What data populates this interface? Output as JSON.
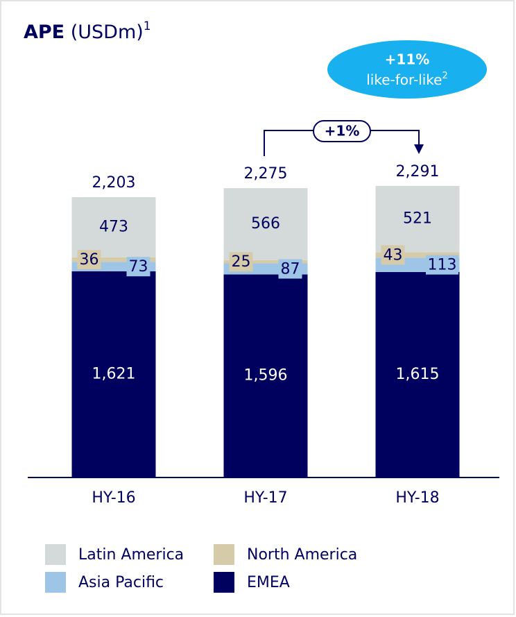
{
  "chart_data": {
    "type": "stacked-bar",
    "title": {
      "bold": "APE",
      "rest": "(USDm)",
      "footnote": "1"
    },
    "categories": [
      "HY-16",
      "HY-17",
      "HY-18"
    ],
    "series": [
      {
        "name": "Latin America",
        "color": "#d3dad9",
        "values": [
          473,
          566,
          521
        ]
      },
      {
        "name": "North America",
        "color": "#d6cba9",
        "values": [
          36,
          25,
          43
        ]
      },
      {
        "name": "Asia Pacific",
        "color": "#9ec4e6",
        "values": [
          73,
          87,
          113
        ]
      },
      {
        "name": "EMEA",
        "color": "#00005f",
        "values": [
          1621,
          1596,
          1615
        ]
      }
    ],
    "totals": [
      {
        "value": 2203,
        "label": "2,203"
      },
      {
        "value": 2275,
        "label": "2,275"
      },
      {
        "value": 2291,
        "label": "2,291"
      }
    ],
    "value_labels": {
      "EMEA": [
        "1,621",
        "1,596",
        "1,615"
      ]
    },
    "annotations": {
      "growth": "+1%",
      "lfl_growth": "+11%",
      "lfl_label": "like-for-like",
      "lfl_footnote": "2"
    }
  }
}
